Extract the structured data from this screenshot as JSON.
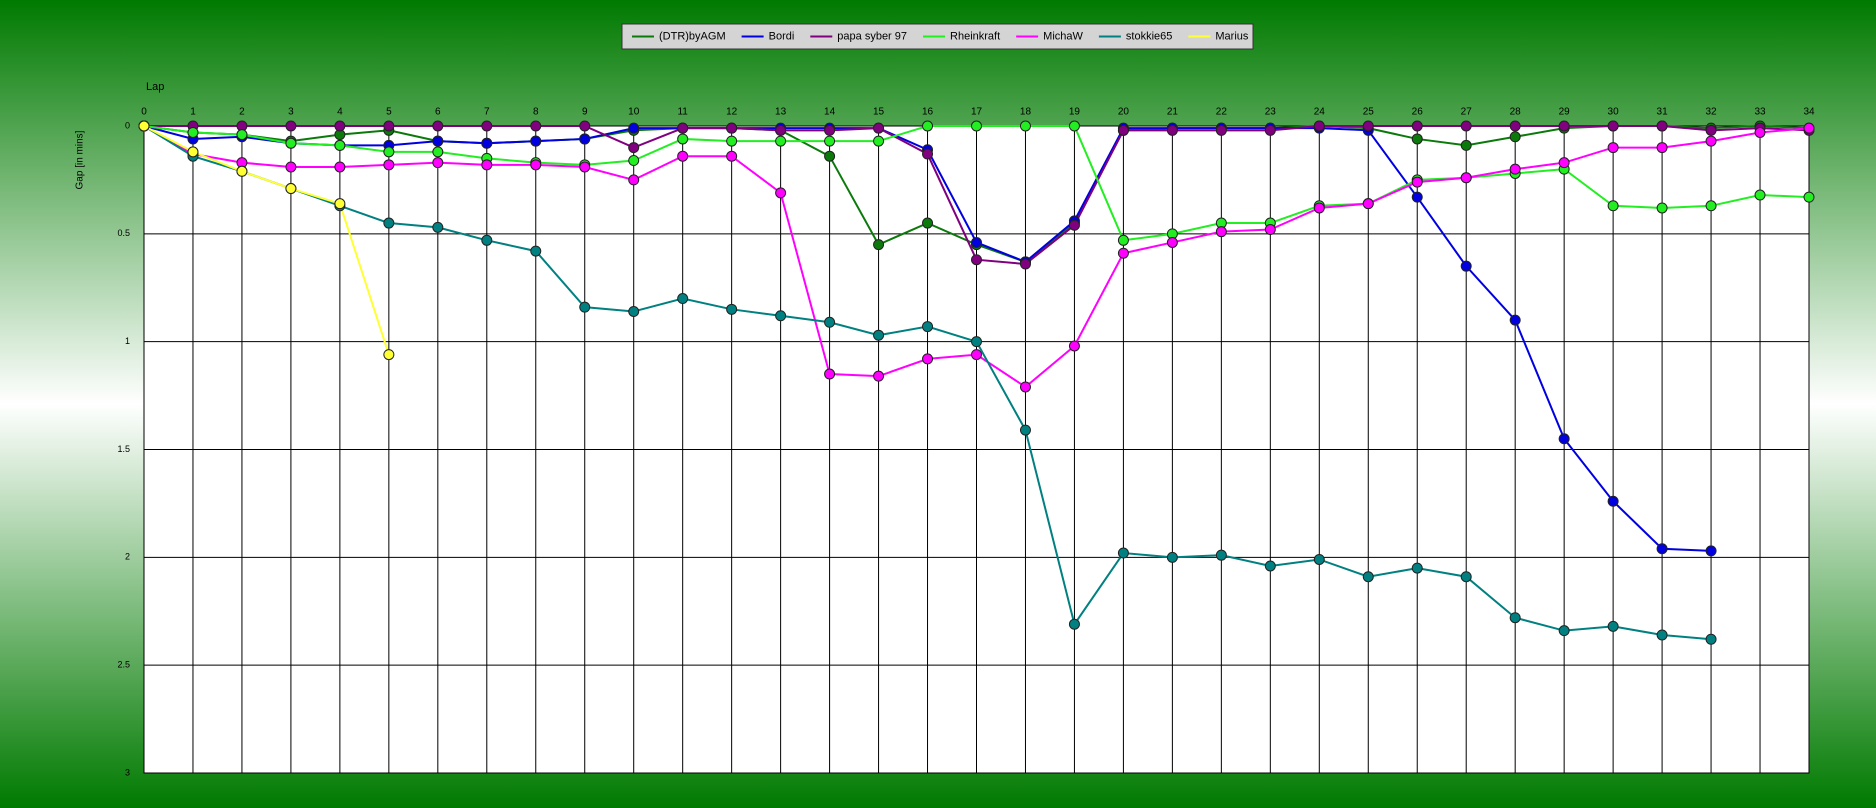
{
  "chart_data": {
    "type": "line",
    "xlabel": "Lap",
    "ylabel": "Gap [in mins]",
    "x": [
      0,
      1,
      2,
      3,
      4,
      5,
      6,
      7,
      8,
      9,
      10,
      11,
      12,
      13,
      14,
      15,
      16,
      17,
      18,
      19,
      20,
      21,
      22,
      23,
      24,
      25,
      26,
      27,
      28,
      29,
      30,
      31,
      32,
      33,
      34
    ],
    "xlim": [
      0,
      34
    ],
    "xticks": [
      0,
      1,
      2,
      3,
      4,
      5,
      6,
      7,
      8,
      9,
      10,
      11,
      12,
      13,
      14,
      15,
      16,
      17,
      18,
      19,
      20,
      21,
      22,
      23,
      24,
      25,
      26,
      27,
      28,
      29,
      30,
      31,
      32,
      33,
      34
    ],
    "ylim": [
      0,
      3
    ],
    "yticks": [
      0,
      0.5,
      1,
      1.5,
      2,
      2.5,
      3
    ],
    "y_inverted": true,
    "grid": true,
    "series": [
      {
        "name": "(DTR)byAGM",
        "color": "#0b7a0b",
        "values": [
          0,
          0.03,
          0.04,
          0.07,
          0.04,
          0.02,
          0.07,
          0.08,
          0.07,
          0.06,
          0.02,
          0.01,
          0.01,
          0.02,
          0.14,
          0.55,
          0.45,
          0.55,
          0.63,
          0.45,
          0.02,
          0.01,
          0.01,
          0.01,
          0,
          0.01,
          0.06,
          0.09,
          0.05,
          0.01,
          0,
          0,
          0.01,
          0,
          0.01
        ]
      },
      {
        "name": "Bordi",
        "color": "#0000e0",
        "values": [
          0,
          0.06,
          0.05,
          0.08,
          0.09,
          0.09,
          0.07,
          0.08,
          0.07,
          0.06,
          0.01,
          0.01,
          0.01,
          0.01,
          0.01,
          0.01,
          0.11,
          0.54,
          0.63,
          0.44,
          0.01,
          0.01,
          0.01,
          0.01,
          0.01,
          0.02,
          0.33,
          0.65,
          0.9,
          1.45,
          1.74,
          1.96,
          1.97,
          null,
          null
        ]
      },
      {
        "name": "papa syber 97",
        "color": "#800080",
        "values": [
          0,
          0,
          0,
          0,
          0,
          0,
          0,
          0,
          0,
          0,
          0.1,
          0.01,
          0.01,
          0.02,
          0.02,
          0.01,
          0.13,
          0.62,
          0.64,
          0.46,
          0.02,
          0.02,
          0.02,
          0.02,
          0,
          0,
          0,
          0,
          0,
          0,
          0,
          0,
          0.02,
          0.01,
          0.02
        ]
      },
      {
        "name": "Rheinkraft",
        "color": "#22ee22",
        "values": [
          0,
          0.03,
          0.04,
          0.08,
          0.09,
          0.12,
          0.12,
          0.15,
          0.17,
          0.18,
          0.16,
          0.06,
          0.07,
          0.07,
          0.07,
          0.07,
          0,
          0,
          0,
          0,
          0.53,
          0.5,
          0.45,
          0.45,
          0.37,
          0.36,
          0.25,
          0.24,
          0.22,
          0.2,
          0.37,
          0.38,
          0.37,
          0.32,
          0.33
        ]
      },
      {
        "name": "MichaW",
        "color": "#ff00ff",
        "values": [
          0,
          0.13,
          0.17,
          0.19,
          0.19,
          0.18,
          0.17,
          0.18,
          0.18,
          0.19,
          0.25,
          0.14,
          0.14,
          0.31,
          1.15,
          1.16,
          1.08,
          1.06,
          1.21,
          1.02,
          0.59,
          0.54,
          0.49,
          0.48,
          0.38,
          0.36,
          0.26,
          0.24,
          0.2,
          0.17,
          0.1,
          0.1,
          0.07,
          0.03,
          0.01
        ]
      },
      {
        "name": "stokkie65",
        "color": "#008080",
        "values": [
          0,
          0.14,
          0.21,
          0.29,
          0.37,
          0.45,
          0.47,
          0.53,
          0.58,
          0.84,
          0.86,
          0.8,
          0.85,
          0.88,
          0.91,
          0.97,
          0.93,
          1.0,
          1.41,
          2.31,
          1.98,
          2.0,
          1.99,
          2.04,
          2.01,
          2.09,
          2.05,
          2.09,
          2.28,
          2.34,
          2.32,
          2.36,
          2.38,
          null,
          null
        ]
      },
      {
        "name": "Marius",
        "color": "#ffff33",
        "values": [
          0,
          0.12,
          0.21,
          0.29,
          0.36,
          1.06,
          null,
          null,
          null,
          null,
          null,
          null,
          null,
          null,
          null,
          null,
          null,
          null,
          null,
          null,
          null,
          null,
          null,
          null,
          null,
          null,
          null,
          null,
          null,
          null,
          null,
          null,
          null,
          null,
          null
        ]
      }
    ]
  }
}
